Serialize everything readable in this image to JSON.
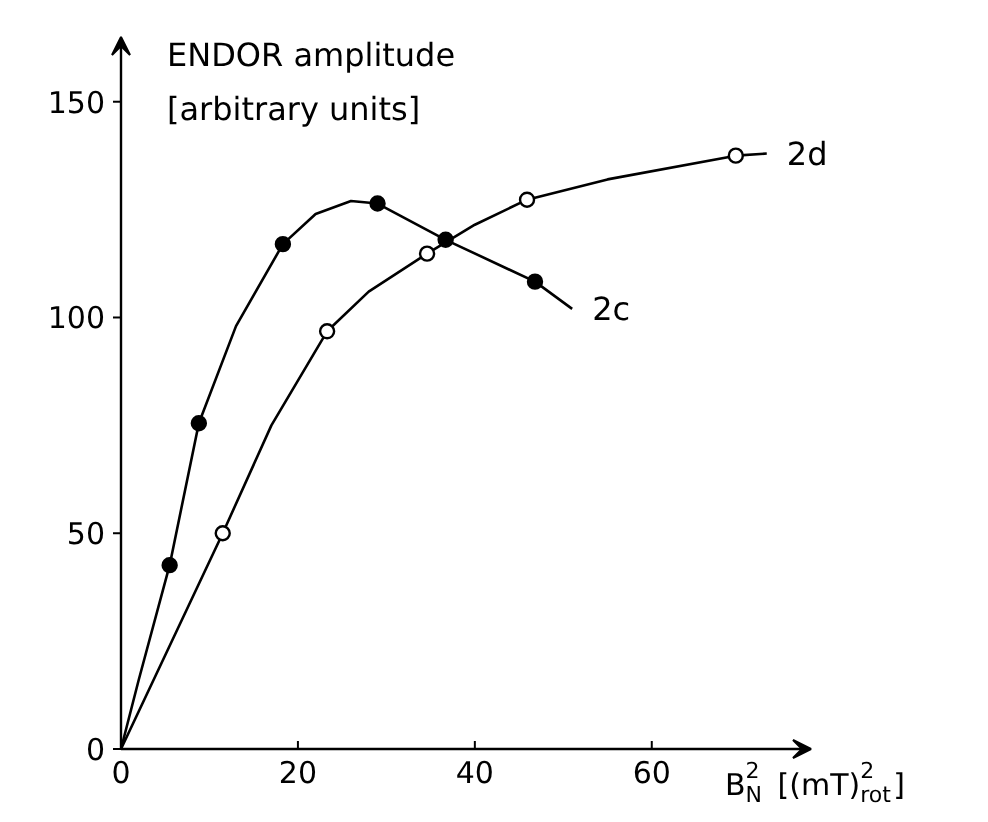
{
  "chart_data": {
    "type": "line",
    "ylabel": "ENDOR amplitude\n[arbitrary units]",
    "xlabel": "B$_{N}$$^{2}$ [(mT)$^{2}$$_{rot}$]",
    "xlim": [
      0,
      78
    ],
    "ylim": [
      0,
      165
    ],
    "xticks": [
      0,
      20,
      40,
      60
    ],
    "yticks": [
      0,
      50,
      100,
      150
    ],
    "grid": false,
    "legend": false,
    "line_style": "solid",
    "series": [
      {
        "name": "2c",
        "color": "#000000",
        "marker": "none",
        "x": [
          0,
          2,
          5.5,
          8.8,
          13,
          18.3,
          22,
          26,
          29,
          36.7,
          46.8,
          51
        ],
        "values": [
          0,
          16,
          42.6,
          75.5,
          98,
          117,
          124,
          127,
          126.4,
          118,
          108.3,
          102
        ]
      },
      {
        "name": "2d",
        "color": "#000000",
        "marker": "none",
        "x": [
          0,
          11.5,
          17,
          23.3,
          28,
          34.6,
          40,
          45.9,
          55,
          69.5,
          73
        ],
        "values": [
          0,
          50,
          75,
          96.8,
          106,
          114.8,
          121.5,
          127.3,
          132,
          137.5,
          138
        ]
      },
      {
        "type": "scatter",
        "color": "#000000",
        "marker": "circle",
        "x": [
          5.5,
          8.8,
          18.3,
          29,
          36.7,
          46.8
        ],
        "values": [
          42.6,
          75.5,
          117,
          126.4,
          118,
          108.3
        ]
      },
      {
        "type": "scatter",
        "color": "#ffffff",
        "marker": "circle",
        "x": [
          11.5,
          23.3,
          34.6,
          45.9,
          69.5
        ],
        "values": [
          50,
          96.8,
          114.8,
          127.3,
          137.5
        ]
      }
    ]
  }
}
